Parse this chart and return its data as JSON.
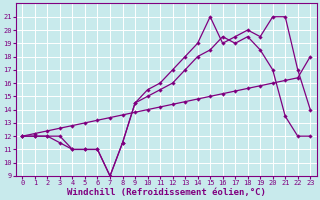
{
  "xlabel": "Windchill (Refroidissement éolien,°C)",
  "line1_x": [
    0,
    1,
    2,
    3,
    4,
    5,
    6,
    7,
    8,
    9,
    10,
    11,
    12,
    13,
    14,
    15,
    16,
    17,
    18,
    19,
    20,
    21,
    22,
    23
  ],
  "line1_y": [
    12,
    12,
    12,
    11.5,
    11,
    11,
    11,
    9,
    11.5,
    14.5,
    15,
    15.5,
    16,
    17,
    18,
    18.5,
    19.5,
    19,
    19.5,
    18.5,
    17,
    13.5,
    12,
    12
  ],
  "line2_x": [
    0,
    1,
    2,
    3,
    4,
    5,
    6,
    7,
    8,
    9,
    10,
    11,
    12,
    13,
    14,
    15,
    16,
    17,
    18,
    19,
    20,
    21,
    22,
    23
  ],
  "line2_y": [
    12,
    12,
    12,
    12,
    11,
    11,
    11,
    9,
    11.5,
    14.5,
    15.5,
    16,
    17,
    18,
    19,
    21,
    19,
    19.5,
    20,
    19.5,
    21,
    21,
    17,
    14
  ],
  "line3_x": [
    0,
    1,
    2,
    3,
    4,
    5,
    6,
    7,
    8,
    9,
    10,
    11,
    12,
    13,
    14,
    15,
    16,
    17,
    18,
    19,
    20,
    21,
    22,
    23
  ],
  "line3_y": [
    12,
    12.2,
    12.4,
    12.6,
    12.8,
    13.0,
    13.2,
    13.4,
    13.6,
    13.8,
    14.0,
    14.2,
    14.4,
    14.6,
    14.8,
    15.0,
    15.2,
    15.4,
    15.6,
    15.8,
    16.0,
    16.2,
    16.4,
    18.0
  ],
  "ylim": [
    9,
    22
  ],
  "xlim": [
    -0.5,
    23.5
  ],
  "yticks": [
    9,
    10,
    11,
    12,
    13,
    14,
    15,
    16,
    17,
    18,
    19,
    20,
    21
  ],
  "xticks": [
    0,
    1,
    2,
    3,
    4,
    5,
    6,
    7,
    8,
    9,
    10,
    11,
    12,
    13,
    14,
    15,
    16,
    17,
    18,
    19,
    20,
    21,
    22,
    23
  ],
  "line_color": "#800080",
  "bg_color": "#c8eaec",
  "grid_color": "#b0d8dc",
  "marker": "D",
  "markersize": 2.2,
  "linewidth": 0.9,
  "tick_fontsize": 5.0,
  "xlabel_fontsize": 6.5
}
